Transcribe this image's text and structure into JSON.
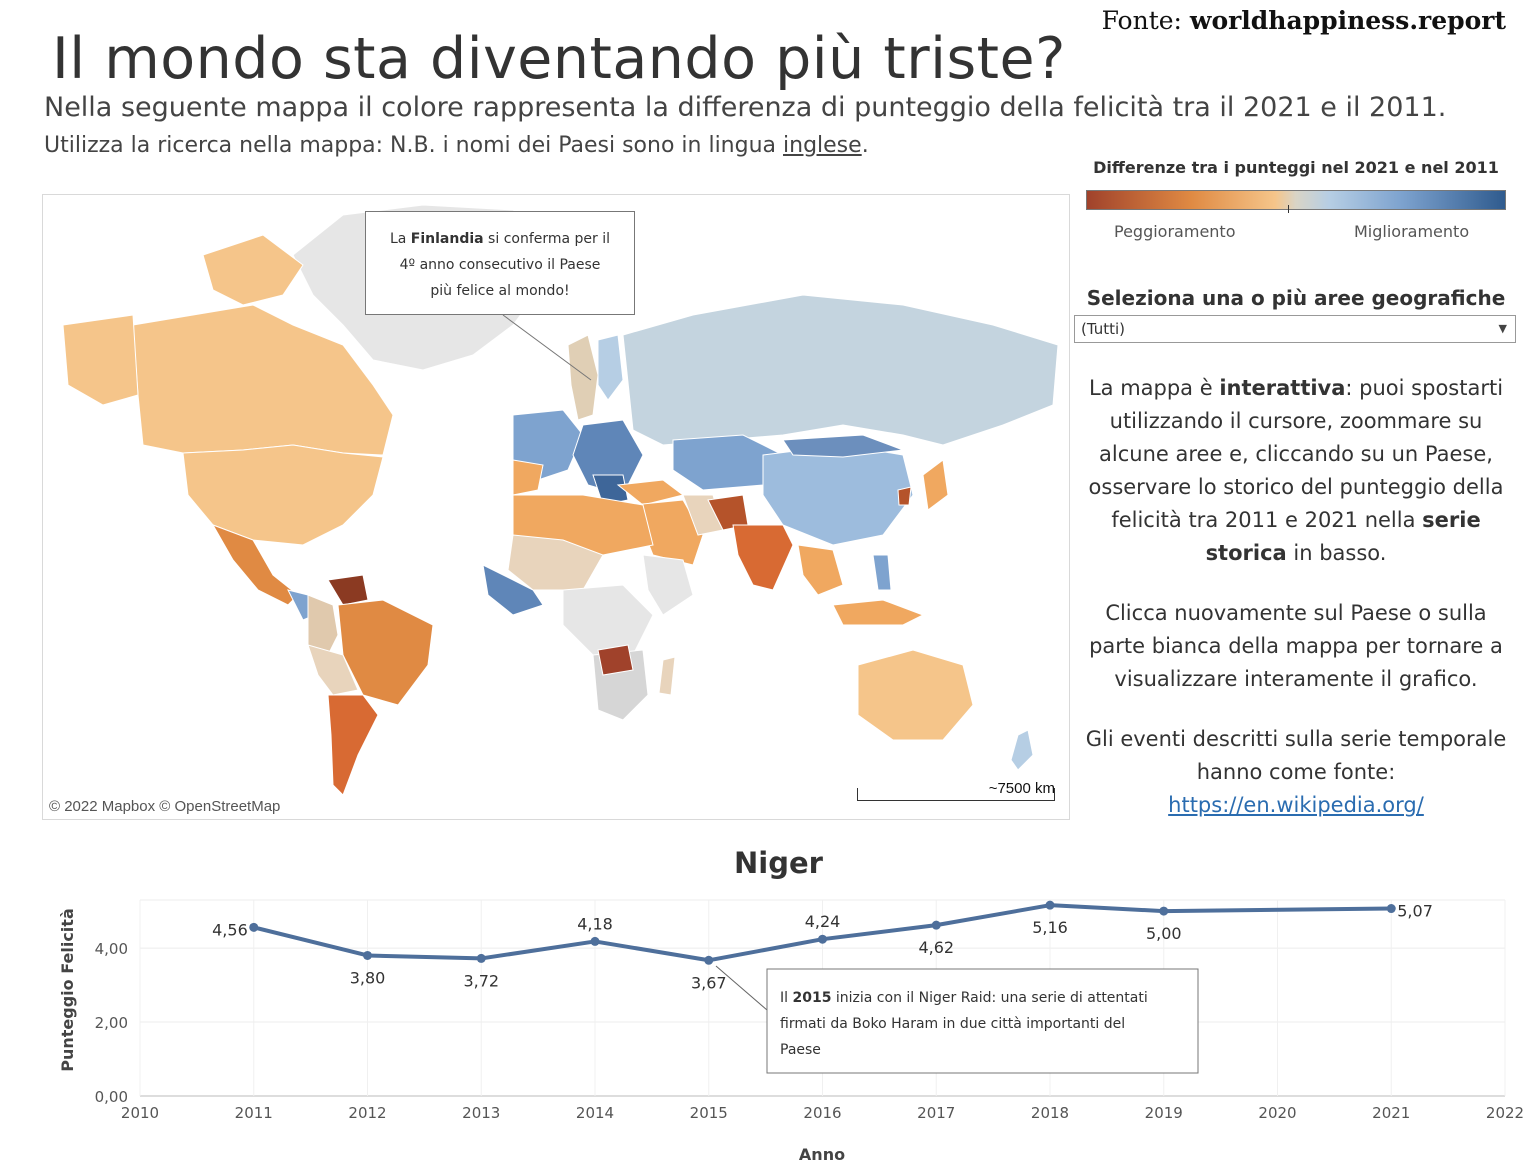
{
  "source": {
    "prefix": "Fonte:",
    "site": "worldhappiness.report"
  },
  "title": "Il mondo sta diventando più triste?",
  "subtitle": "Nella seguente mappa il colore rappresenta la differenza di punteggio della felicità tra il 2021 e il 2011.",
  "instructions": {
    "text": "Utilizza la ricerca nella mappa: N.B. i nomi dei Paesi sono in lingua ",
    "underlined": "inglese",
    "end": "."
  },
  "map": {
    "attribution": "© 2022 Mapbox  © OpenStreetMap",
    "scale_label": "~7500 km",
    "callout": {
      "prefix": "La ",
      "bold": "Finlandia",
      "line1_rest": " si conferma per il",
      "line2": "4º anno consecutivo il Paese",
      "line3": "più felice al mondo!"
    }
  },
  "legend": {
    "title": "Differenze tra i punteggi nel 2021 e nel 2011",
    "left_label": "Peggioramento",
    "right_label": "Miglioramento",
    "colors": {
      "worse_dark": "#a0422b",
      "worse": "#e08a43",
      "worse_light": "#f5c58a",
      "neutral": "#d9d4c6",
      "better_light": "#b6cee4",
      "better": "#7ea3cf",
      "better_dark": "#2f5b8e"
    }
  },
  "filter": {
    "label": "Seleziona una o più aree geografiche",
    "value": "(Tutti)"
  },
  "side": {
    "p1": {
      "a": "La mappa è ",
      "b": "interattiva",
      "c": ": puoi spostarti utilizzando il cursore, zoommare su alcune aree e, cliccando su un Paese, osservare lo storico del punteggio della felicità tra 2011 e 2021 nella ",
      "d": "serie storica",
      "e": " in basso."
    },
    "p2": "Clicca nuovamente sul Paese o sulla parte bianca della mappa per tornare a visualizzare interamente il grafico.",
    "p3": "Gli eventi descritti sulla serie temporale hanno come fonte:",
    "link": "https://en.wikipedia.org/"
  },
  "chart_data": {
    "type": "line",
    "title": "Niger",
    "xlabel": "Anno",
    "ylabel": "Punteggio Felicità",
    "x_ticks": [
      "2010",
      "2011",
      "2012",
      "2013",
      "2014",
      "2015",
      "2016",
      "2017",
      "2018",
      "2019",
      "2020",
      "2021",
      "2022"
    ],
    "y_ticks": [
      "0,00",
      "2,00",
      "4,00"
    ],
    "xlim": [
      2010,
      2022
    ],
    "ylim": [
      0,
      5.3
    ],
    "series": [
      {
        "color": "#4e6f9b",
        "x": [
          2011,
          2012,
          2013,
          2014,
          2015,
          2016,
          2017,
          2018,
          2019,
          2021
        ],
        "y": [
          4.56,
          3.8,
          3.72,
          4.18,
          3.67,
          4.24,
          4.62,
          5.16,
          5.0,
          5.07
        ],
        "labels": [
          "4,56",
          "3,80",
          "3,72",
          "4,18",
          "3,67",
          "4,24",
          "4,62",
          "5,16",
          "5,00",
          "5,07"
        ]
      }
    ],
    "annotation": {
      "pre": "Il ",
      "bold": "2015",
      "line1": " inizia con il Niger Raid: una serie di attentati",
      "line2": "firmati da Boko Haram in due città importanti del",
      "line3": "Paese"
    }
  }
}
